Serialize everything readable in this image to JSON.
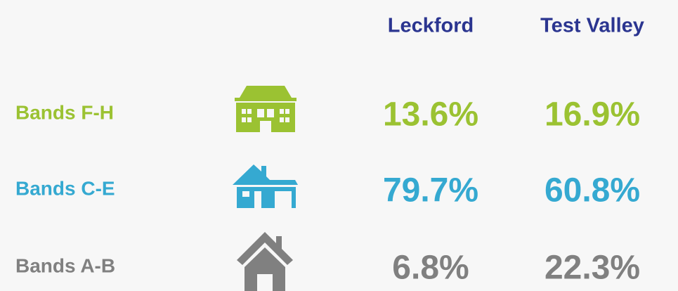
{
  "table": {
    "columns": [
      "Leckford",
      "Test Valley"
    ],
    "rows": [
      {
        "label": "Bands F-H",
        "values": [
          "13.6%",
          "16.9%"
        ],
        "color": "#9bc232"
      },
      {
        "label": "Bands C-E",
        "values": [
          "79.7%",
          "60.8%"
        ],
        "color": "#35a9d1"
      },
      {
        "label": "Bands A-B",
        "values": [
          "6.8%",
          "22.3%"
        ],
        "color": "#808080"
      }
    ]
  }
}
